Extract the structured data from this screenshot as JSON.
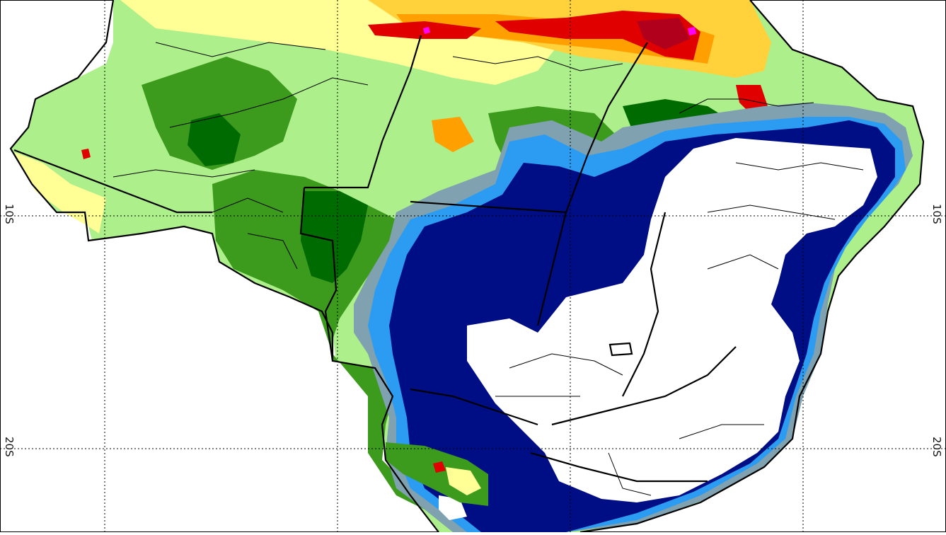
{
  "map": {
    "region": "Brazil",
    "palette": {
      "ocean": "#ffffff",
      "white_class": "#ffffff",
      "dark_blue": "#000e85",
      "light_blue": "#2b9cf2",
      "gray_blue": "#7fa1b0",
      "dark_green": "#006b00",
      "mid_green": "#3c9a1c",
      "light_green": "#adef8a",
      "pale_yellow": "#ffff95",
      "yellow": "#ffd23c",
      "orange": "#ff9f00",
      "red": "#e00000",
      "dark_red": "#b0001b",
      "magenta": "#ff00ff",
      "border": "#000000",
      "grid": "#000000"
    },
    "latitude_labels": {
      "lat_10": "10S",
      "lat_20": "20S"
    }
  }
}
